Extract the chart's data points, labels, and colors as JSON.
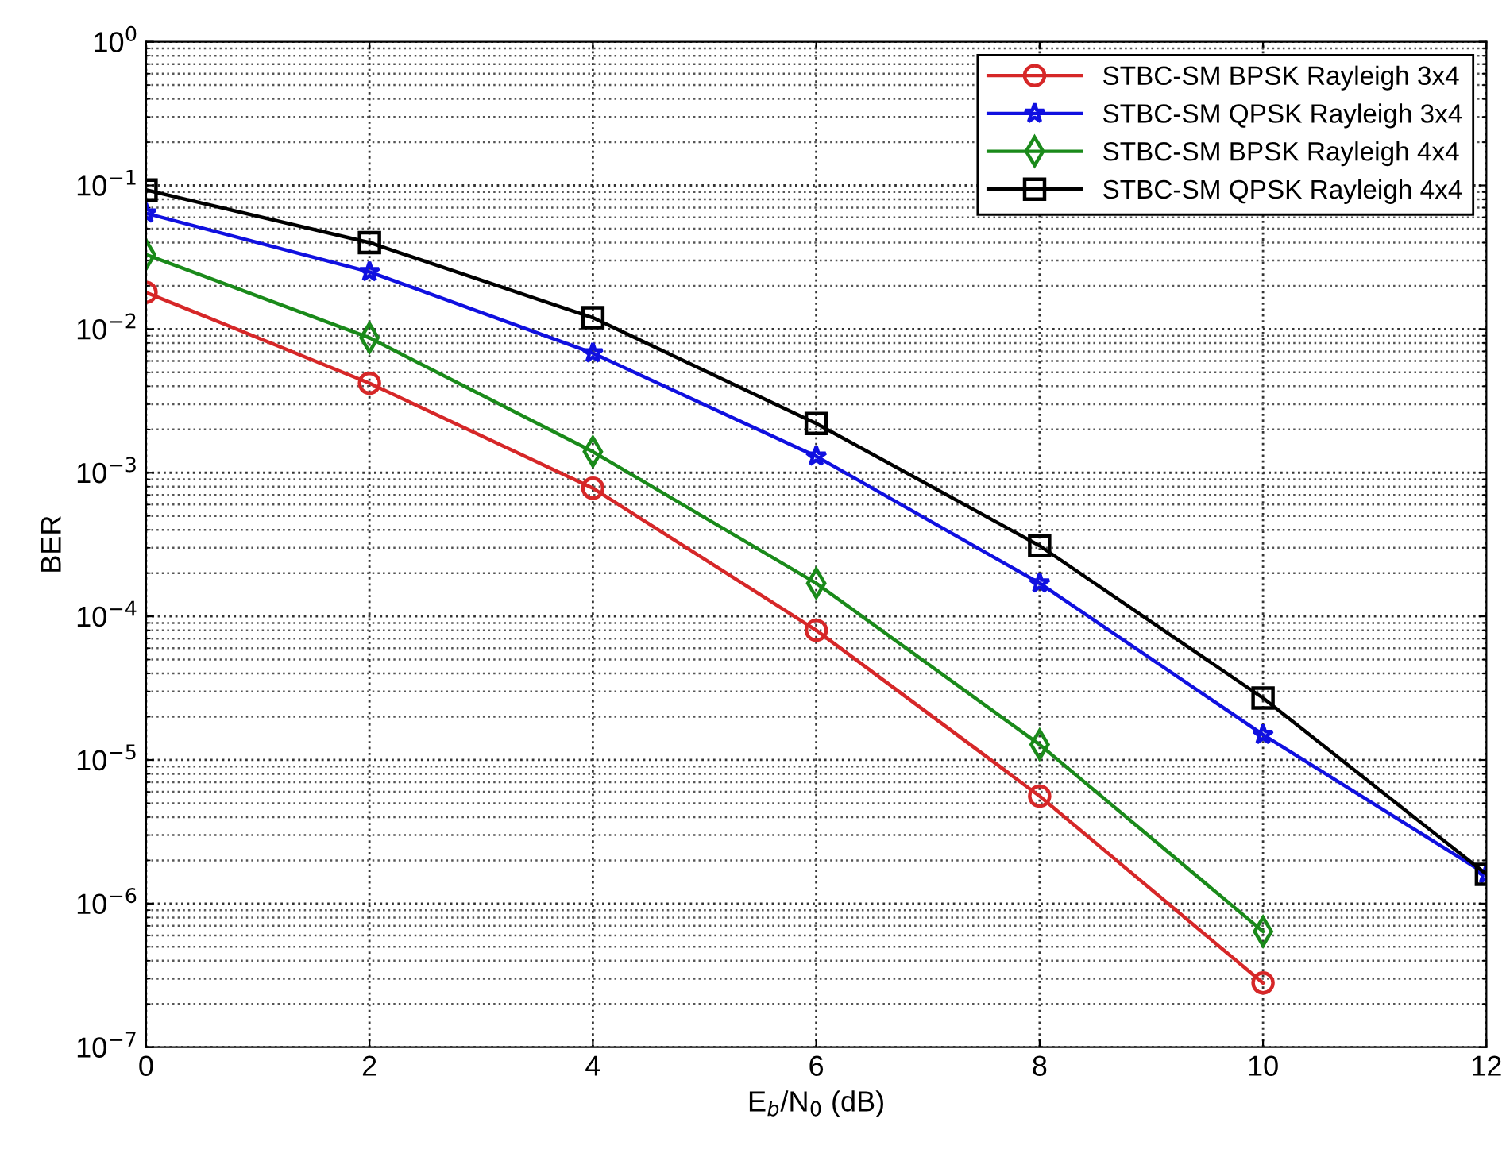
{
  "chart_data": {
    "type": "line",
    "xlabel": "E$_{b}$/N$_{0}$ (dB)",
    "ylabel": "BER",
    "log": "y",
    "xlim": [
      0,
      12
    ],
    "xticks": [
      0,
      2,
      4,
      6,
      8,
      10,
      12
    ],
    "ylim": [
      1e-07,
      1
    ],
    "yticks": [
      {
        "value": 1,
        "label": "10$^{0}$"
      },
      {
        "value": 0.1,
        "label": "10$^{−1}$"
      },
      {
        "value": 0.01,
        "label": "10$^{−2}$"
      },
      {
        "value": 0.001,
        "label": "10$^{−3}$"
      },
      {
        "value": 0.0001,
        "label": "10$^{−4}$"
      },
      {
        "value": 1e-05,
        "label": "10$^{−5}$"
      },
      {
        "value": 1e-06,
        "label": "10$^{−6}$"
      },
      {
        "value": 1e-07,
        "label": "10$^{−7}$"
      }
    ],
    "grid": true,
    "legend": "top right",
    "line_style": "solid",
    "series": [
      {
        "name": "STBC-SM BPSK Rayleigh 3x4",
        "color": "#d62728",
        "marker": "circle",
        "x": [
          0,
          2,
          4,
          6,
          8,
          10
        ],
        "values": [
          0.018,
          0.0042,
          0.00078,
          8e-05,
          5.6e-06,
          2.8e-07
        ]
      },
      {
        "name": "STBC-SM QPSK Rayleigh 3x4",
        "color": "#1010e0",
        "marker": "star",
        "x": [
          0,
          2,
          4,
          6,
          8,
          10,
          12
        ],
        "values": [
          0.064,
          0.025,
          0.0068,
          0.0013,
          0.00017,
          1.5e-05,
          1.6e-06
        ]
      },
      {
        "name": "STBC-SM BPSK Rayleigh 4x4",
        "color": "#1a8a1a",
        "marker": "diamond",
        "x": [
          0,
          2,
          4,
          6,
          8,
          10
        ],
        "values": [
          0.033,
          0.0087,
          0.0014,
          0.00017,
          1.28e-05,
          6.4e-07
        ]
      },
      {
        "name": "STBC-SM QPSK Rayleigh 4x4",
        "color": "#000000",
        "marker": "square",
        "x": [
          0,
          2,
          4,
          6,
          8,
          10,
          12
        ],
        "values": [
          0.093,
          0.04,
          0.012,
          0.0022,
          0.00031,
          2.7e-05,
          1.6e-06
        ]
      }
    ]
  }
}
